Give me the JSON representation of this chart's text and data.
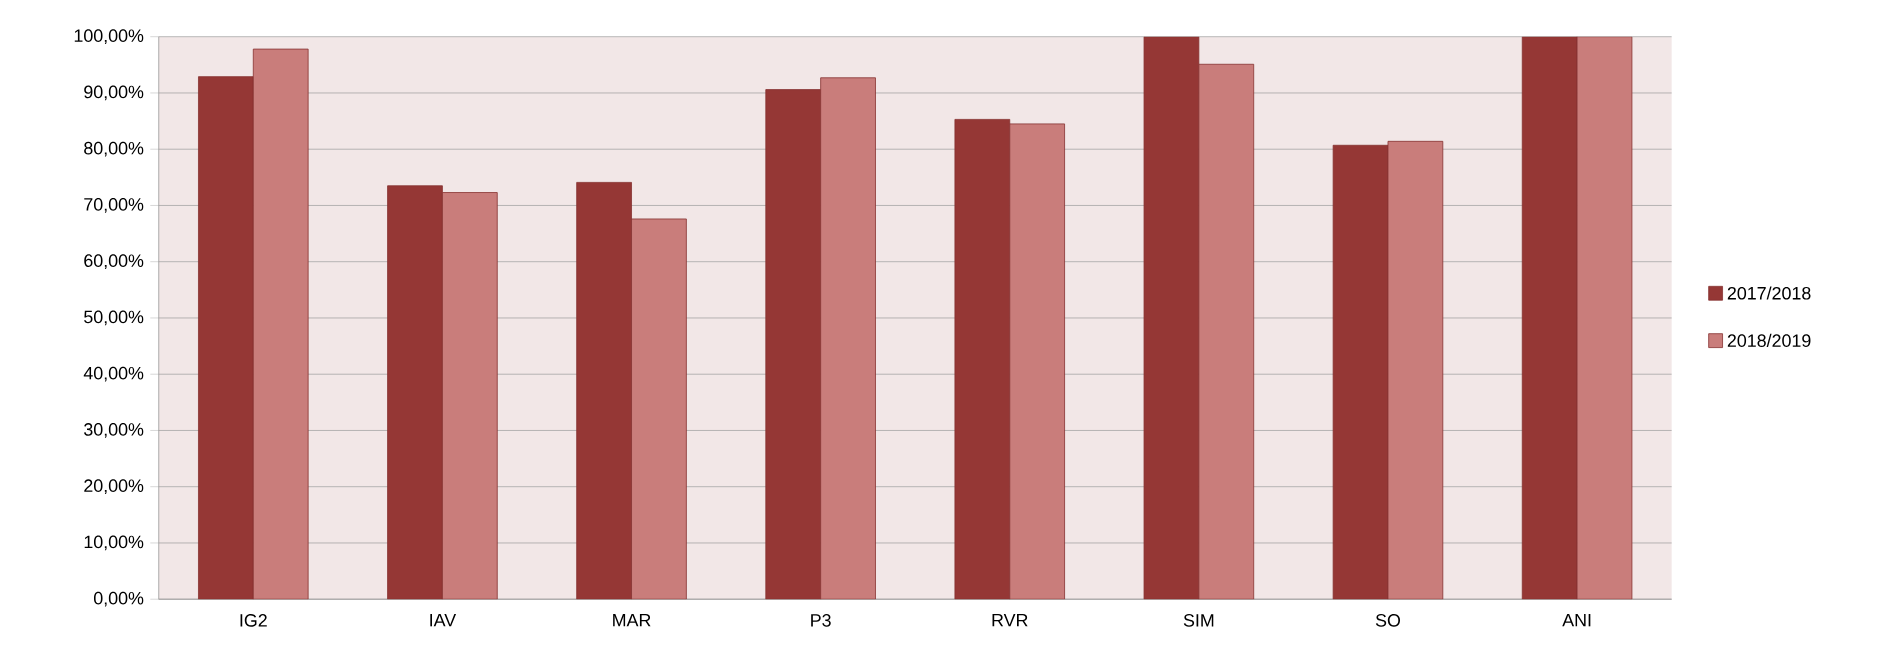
{
  "chart_data": {
    "type": "bar",
    "categories": [
      "IG2",
      "IAV",
      "MAR",
      "P3",
      "RVR",
      "SIM",
      "SO",
      "ANI"
    ],
    "series": [
      {
        "name": "2017/2018",
        "color": "#953735",
        "values": [
          92.9,
          73.5,
          74.1,
          90.6,
          85.3,
          100,
          80.7,
          100
        ]
      },
      {
        "name": "2018/2019",
        "color": "#c97d7b",
        "values": [
          97.8,
          72.3,
          67.6,
          92.7,
          84.5,
          95.1,
          81.4,
          100
        ]
      }
    ],
    "ylim": [
      0,
      100
    ],
    "yticks": [
      {
        "value": 0,
        "label": "0,00%"
      },
      {
        "value": 10,
        "label": "10,00%"
      },
      {
        "value": 20,
        "label": "20,00%"
      },
      {
        "value": 30,
        "label": "30,00%"
      },
      {
        "value": 40,
        "label": "40,00%"
      },
      {
        "value": 50,
        "label": "50,00%"
      },
      {
        "value": 60,
        "label": "60,00%"
      },
      {
        "value": 70,
        "label": "70,00%"
      },
      {
        "value": 80,
        "label": "80,00%"
      },
      {
        "value": 90,
        "label": "90,00%"
      },
      {
        "value": 100,
        "label": "100,00%"
      }
    ],
    "grid": "y",
    "legend": "right"
  }
}
